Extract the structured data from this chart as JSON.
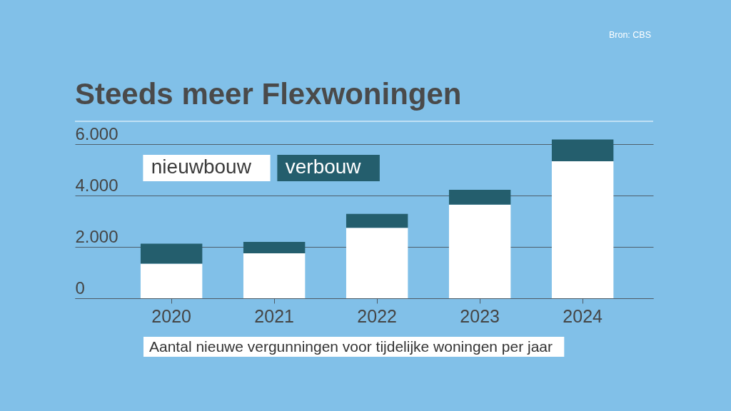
{
  "chart_data": {
    "type": "bar",
    "title": "Steeds meer Flexwoningen",
    "annotations": [
      "Bron: CBS",
      "Aantal nieuwe vergunningen voor tijdelijke woningen per jaar"
    ],
    "categories": [
      "2020",
      "2021",
      "2022",
      "2023",
      "2024"
    ],
    "series": [
      {
        "name": "nieuwbouw",
        "color": "#ffffff",
        "values": [
          1350,
          1750,
          2750,
          3650,
          5340
        ]
      },
      {
        "name": "verbouw",
        "color": "#245e6d",
        "values": [
          780,
          450,
          540,
          580,
          850
        ]
      }
    ],
    "stacked": true,
    "ylim": [
      0,
      6900
    ],
    "yticks": [
      0,
      {
        "value": 2000,
        "label": "2.000"
      },
      {
        "value": 4000,
        "label": "4.000"
      },
      {
        "value": 6000,
        "label": "6.000"
      }
    ],
    "grid": "y",
    "legend": "top left"
  }
}
